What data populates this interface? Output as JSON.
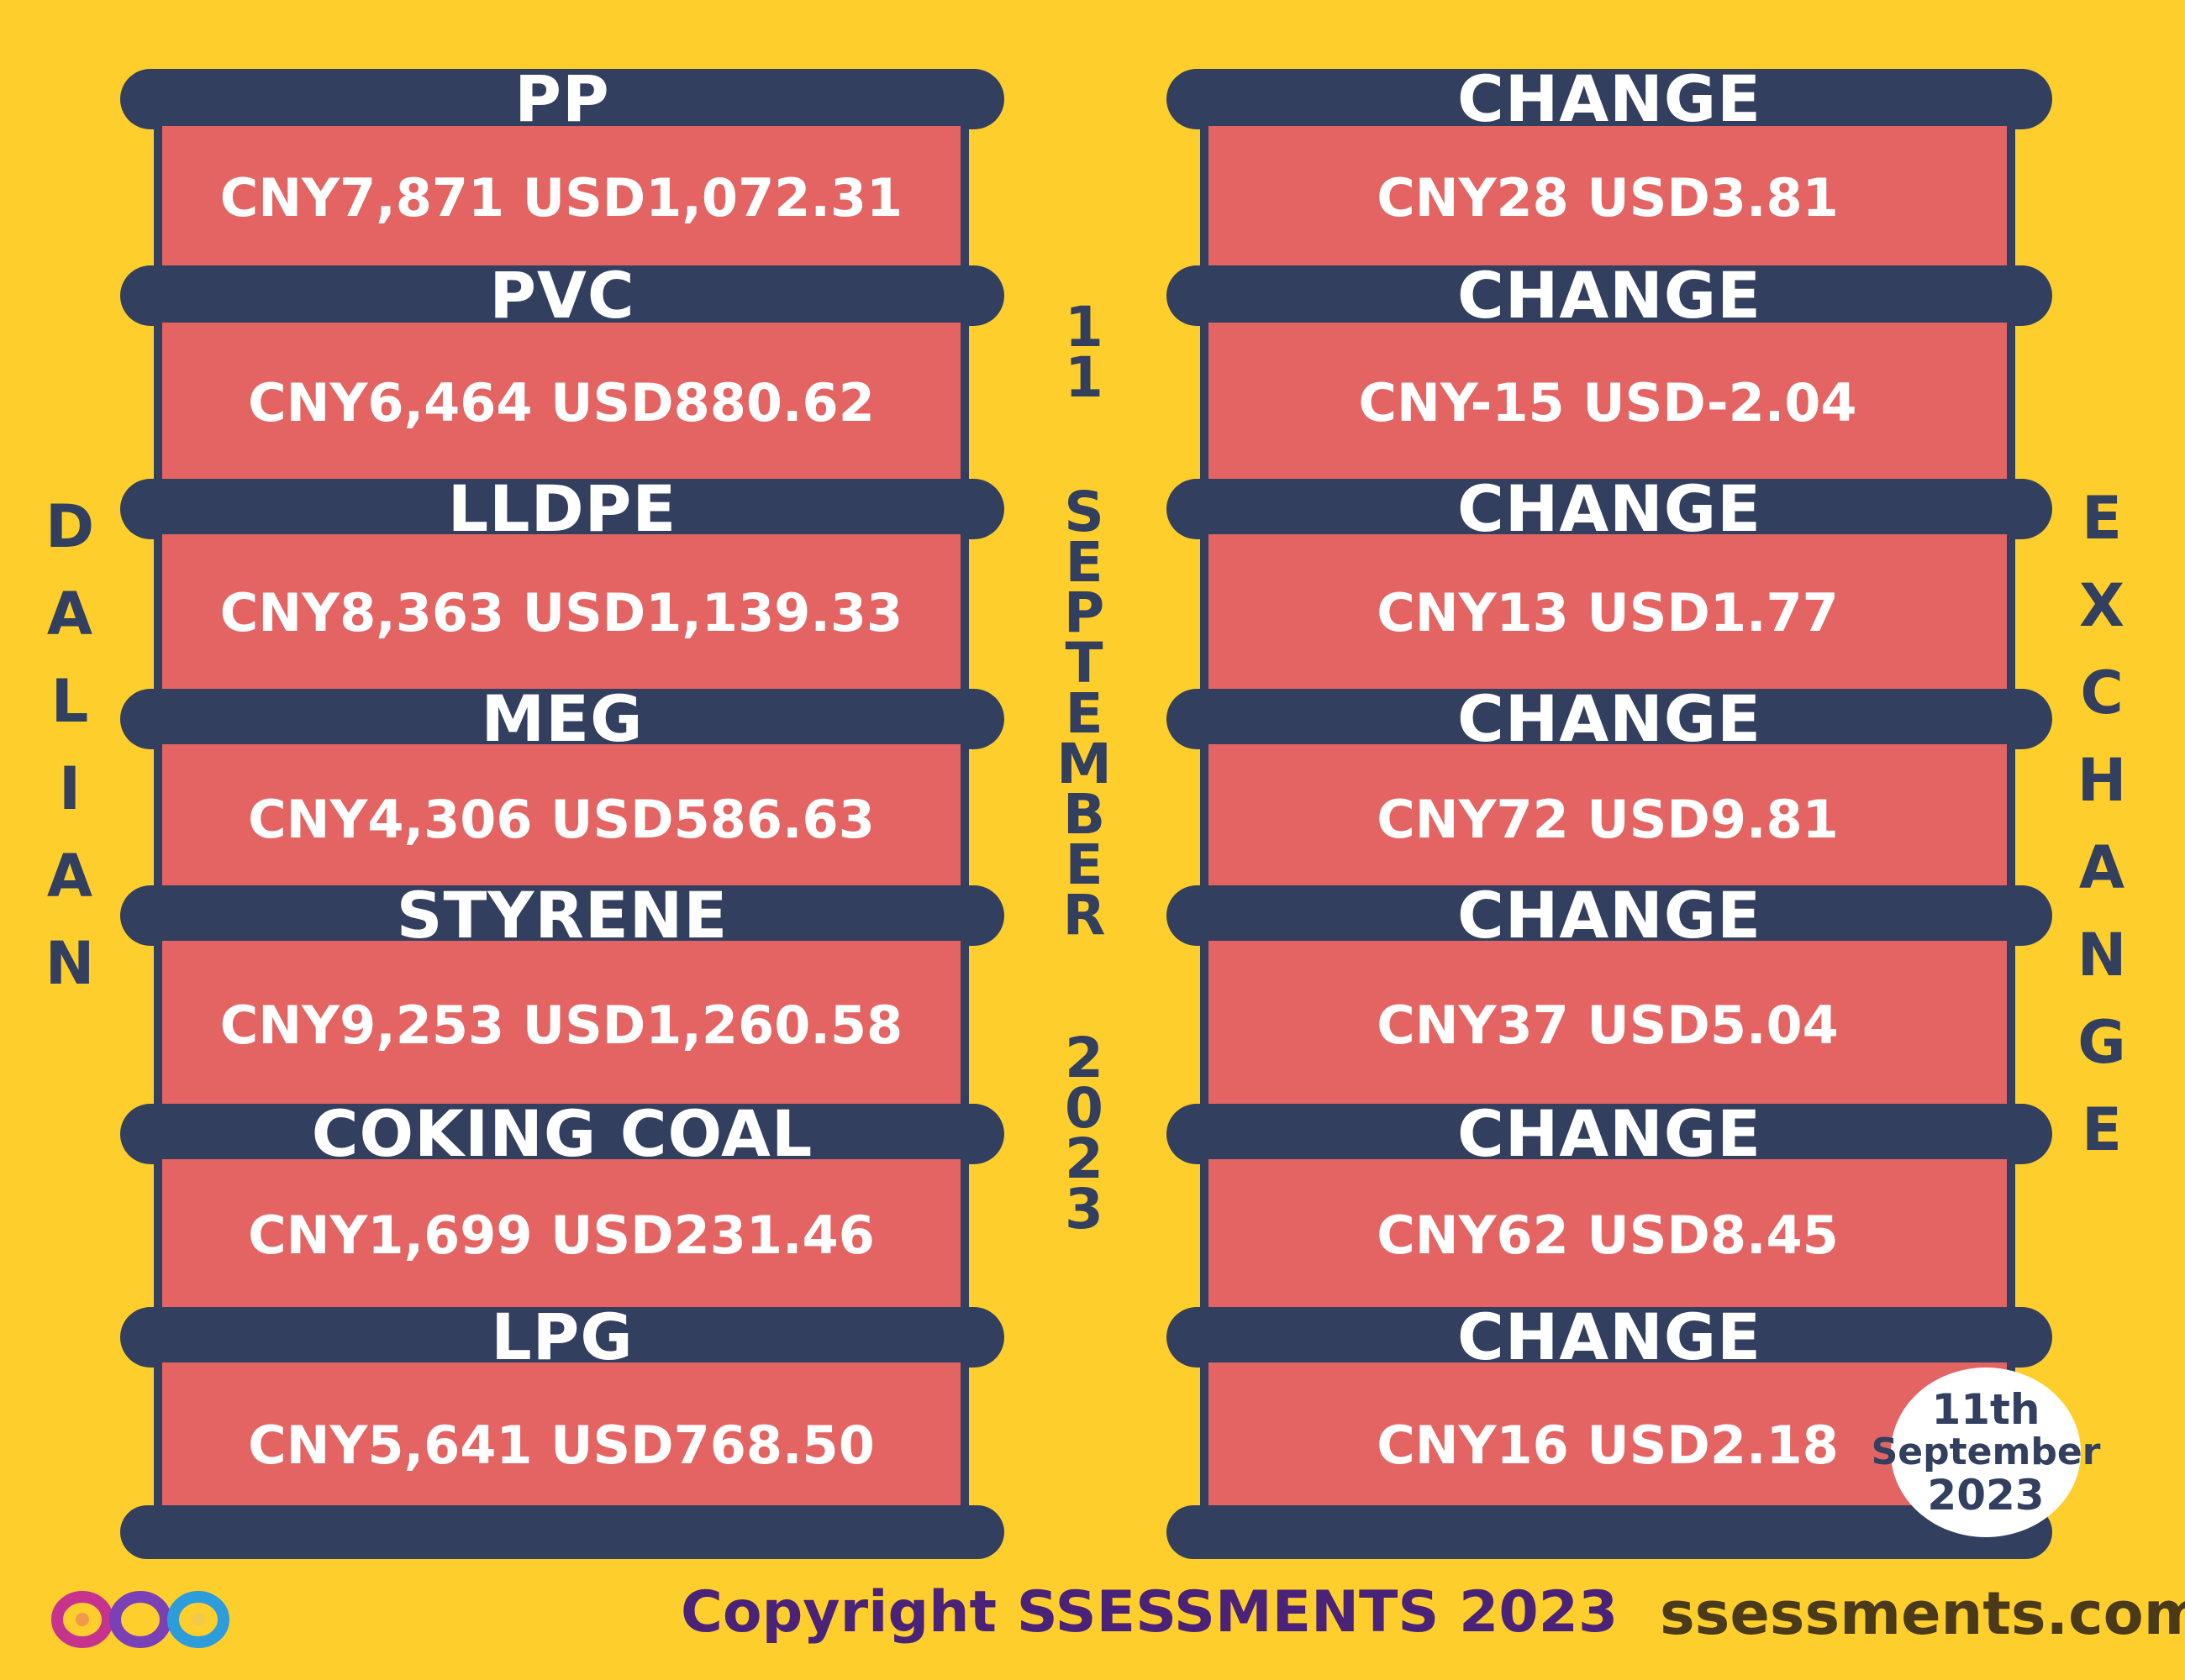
{
  "left_label": "DALIAN",
  "right_label": "EXCHANGE",
  "center_label_top": "11",
  "center_label_mid": "SEPTEMBER",
  "center_label_bottom": "2023",
  "products": [
    {
      "name": "PP",
      "price": "CNY7,871  USD1,072.31",
      "change_title": "CHANGE",
      "change": "CNY28   USD3.81"
    },
    {
      "name": "PVC",
      "price": "CNY6,464  USD880.62",
      "change_title": "CHANGE",
      "change": "CNY-15   USD-2.04"
    },
    {
      "name": "LLDPE",
      "price": "CNY8,363  USD1,139.33",
      "change_title": "CHANGE",
      "change": "CNY13  USD1.77"
    },
    {
      "name": "MEG",
      "price": "CNY4,306  USD586.63",
      "change_title": "CHANGE",
      "change": "CNY72  USD9.81"
    },
    {
      "name": "STYRENE",
      "price": "CNY9,253  USD1,260.58",
      "change_title": "CHANGE",
      "change": "CNY37  USD5.04"
    },
    {
      "name": "COKING COAL",
      "price": "CNY1,699  USD231.46",
      "change_title": "CHANGE",
      "change": "CNY62  USD8.45"
    },
    {
      "name": "LPG",
      "price": "CNY5,641  USD768.50",
      "change_title": "CHANGE",
      "change": "CNY16  USD2.18"
    }
  ],
  "badge": {
    "line1": "11th",
    "line2": "September",
    "line3": "2023"
  },
  "footer": {
    "copyright": "Copyright SSESSMENTS 2023",
    "site": "ssessments.com"
  },
  "colors": {
    "background": "#FECF2C",
    "bar": "#333F5F",
    "box": "#E46463"
  }
}
